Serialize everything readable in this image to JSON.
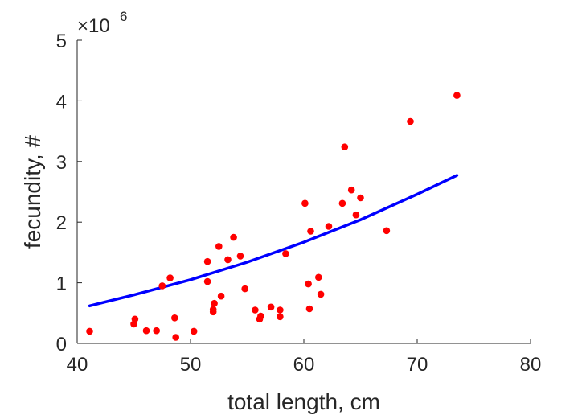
{
  "chart_data": {
    "type": "scatter",
    "xlabel": "total length, cm",
    "ylabel": "fecundity, #",
    "y_exponent_label": "×10",
    "y_exponent_power": "6",
    "xlim": [
      40,
      80
    ],
    "ylim": [
      0,
      5
    ],
    "x_ticks": [
      "40",
      "50",
      "60",
      "70",
      "80"
    ],
    "y_ticks": [
      "0",
      "1",
      "2",
      "3",
      "4",
      "5"
    ],
    "grid": false,
    "colors": {
      "points": "#ff0000",
      "fit_line": "#0000ff",
      "axis": "#262626"
    },
    "scatter_points": [
      [
        41.1,
        0.2
      ],
      [
        45.0,
        0.32
      ],
      [
        45.1,
        0.4
      ],
      [
        46.1,
        0.21
      ],
      [
        47.0,
        0.21
      ],
      [
        47.5,
        0.95
      ],
      [
        48.2,
        1.08
      ],
      [
        48.6,
        0.42
      ],
      [
        48.7,
        0.1
      ],
      [
        50.3,
        0.2
      ],
      [
        51.5,
        1.35
      ],
      [
        51.5,
        1.02
      ],
      [
        52.0,
        0.52
      ],
      [
        52.0,
        0.56
      ],
      [
        52.1,
        0.66
      ],
      [
        52.5,
        1.6
      ],
      [
        52.7,
        0.78
      ],
      [
        53.3,
        1.38
      ],
      [
        53.8,
        1.75
      ],
      [
        54.4,
        1.44
      ],
      [
        54.8,
        0.9
      ],
      [
        55.7,
        0.55
      ],
      [
        56.1,
        0.4
      ],
      [
        56.2,
        0.45
      ],
      [
        57.1,
        0.6
      ],
      [
        57.9,
        0.55
      ],
      [
        57.9,
        0.44
      ],
      [
        58.4,
        1.48
      ],
      [
        60.1,
        2.31
      ],
      [
        60.4,
        0.98
      ],
      [
        60.5,
        0.57
      ],
      [
        60.6,
        1.85
      ],
      [
        61.3,
        1.09
      ],
      [
        61.5,
        0.81
      ],
      [
        62.2,
        1.93
      ],
      [
        63.4,
        2.31
      ],
      [
        63.6,
        3.24
      ],
      [
        64.2,
        2.53
      ],
      [
        64.6,
        2.12
      ],
      [
        65.0,
        2.4
      ],
      [
        67.3,
        1.86
      ],
      [
        69.4,
        3.66
      ],
      [
        73.5,
        4.09
      ]
    ],
    "fit_line": {
      "x": [
        41.1,
        45,
        50,
        55,
        60,
        65,
        70,
        73.5
      ],
      "y": [
        0.62,
        0.8,
        1.05,
        1.34,
        1.67,
        2.04,
        2.46,
        2.77
      ]
    }
  }
}
